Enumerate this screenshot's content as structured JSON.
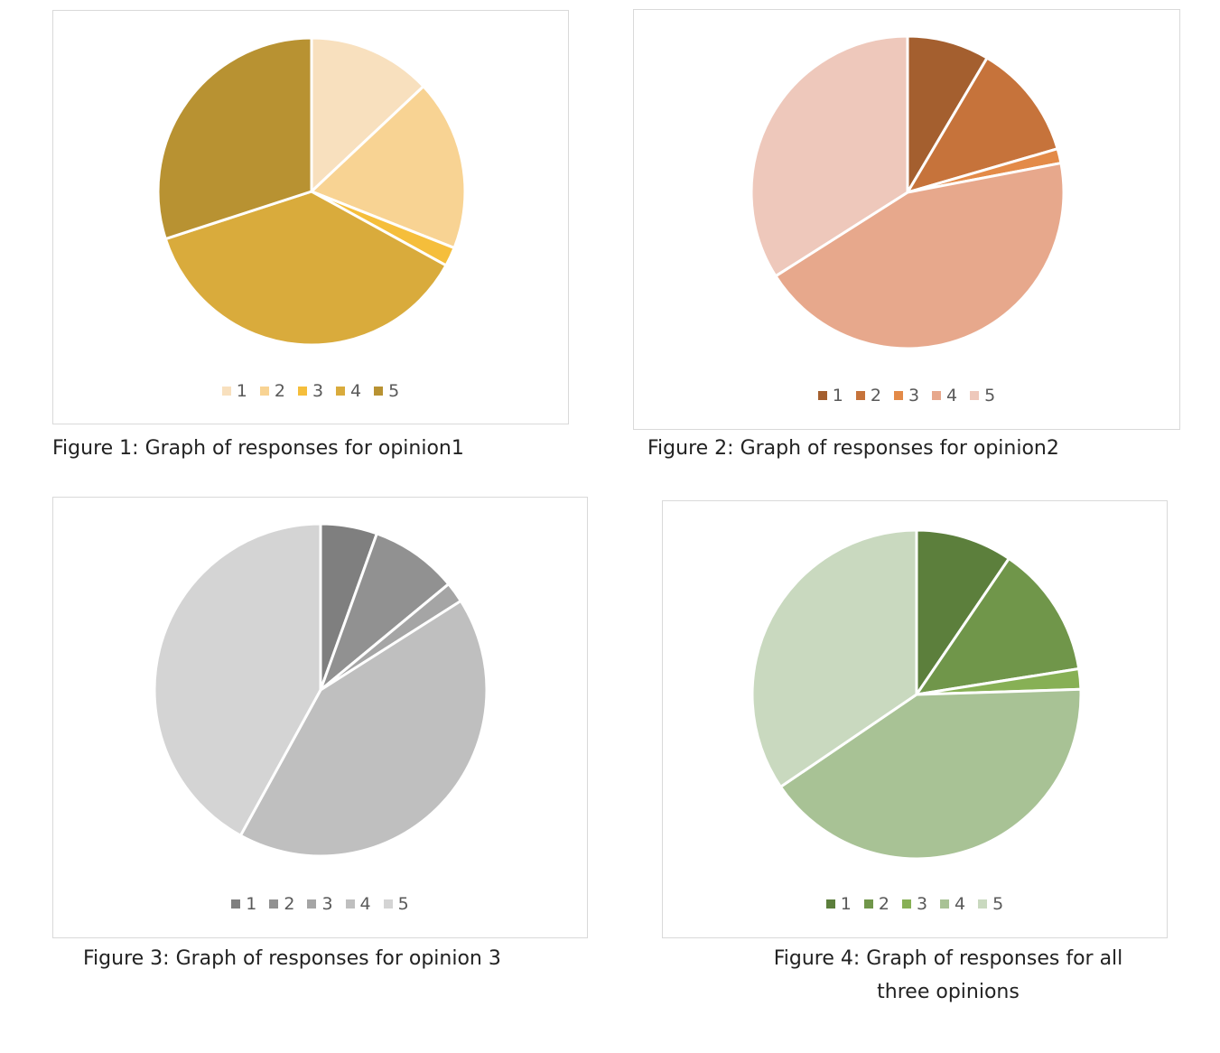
{
  "chart_data": [
    {
      "type": "pie",
      "title": "",
      "categories": [
        "1",
        "2",
        "3",
        "4",
        "5"
      ],
      "values": [
        13,
        18,
        2,
        37,
        30
      ],
      "colors": [
        "#F8E0BE",
        "#F8D393",
        "#F5BE3B",
        "#D9AB3C",
        "#B89232"
      ],
      "legend_position": "bottom",
      "caption": "Figure 1: Graph of responses for opinion1"
    },
    {
      "type": "pie",
      "title": "",
      "categories": [
        "1",
        "2",
        "3",
        "4",
        "5"
      ],
      "values": [
        8.5,
        12,
        1.5,
        44,
        34
      ],
      "colors": [
        "#A45F2F",
        "#C6733B",
        "#E38A48",
        "#E7A88C",
        "#EEC8BB"
      ],
      "legend_position": "bottom",
      "caption": "Figure 2: Graph of responses for opinion2"
    },
    {
      "type": "pie",
      "title": "",
      "categories": [
        "1",
        "2",
        "3",
        "4",
        "5"
      ],
      "values": [
        5.5,
        8.5,
        2,
        42,
        42
      ],
      "colors": [
        "#7F7F7F",
        "#919191",
        "#A5A5A5",
        "#BFBFBF",
        "#D4D4D4"
      ],
      "legend_position": "bottom",
      "caption": "Figure 3: Graph of responses for opinion 3"
    },
    {
      "type": "pie",
      "title": "",
      "categories": [
        "1",
        "2",
        "3",
        "4",
        "5"
      ],
      "values": [
        9.5,
        13,
        2,
        41,
        34.5
      ],
      "colors": [
        "#5C7F3C",
        "#70964A",
        "#87B055",
        "#A8C295",
        "#C9D9BF"
      ],
      "legend_position": "bottom",
      "caption": "Figure 4: Graph of responses for all three opinions"
    }
  ]
}
